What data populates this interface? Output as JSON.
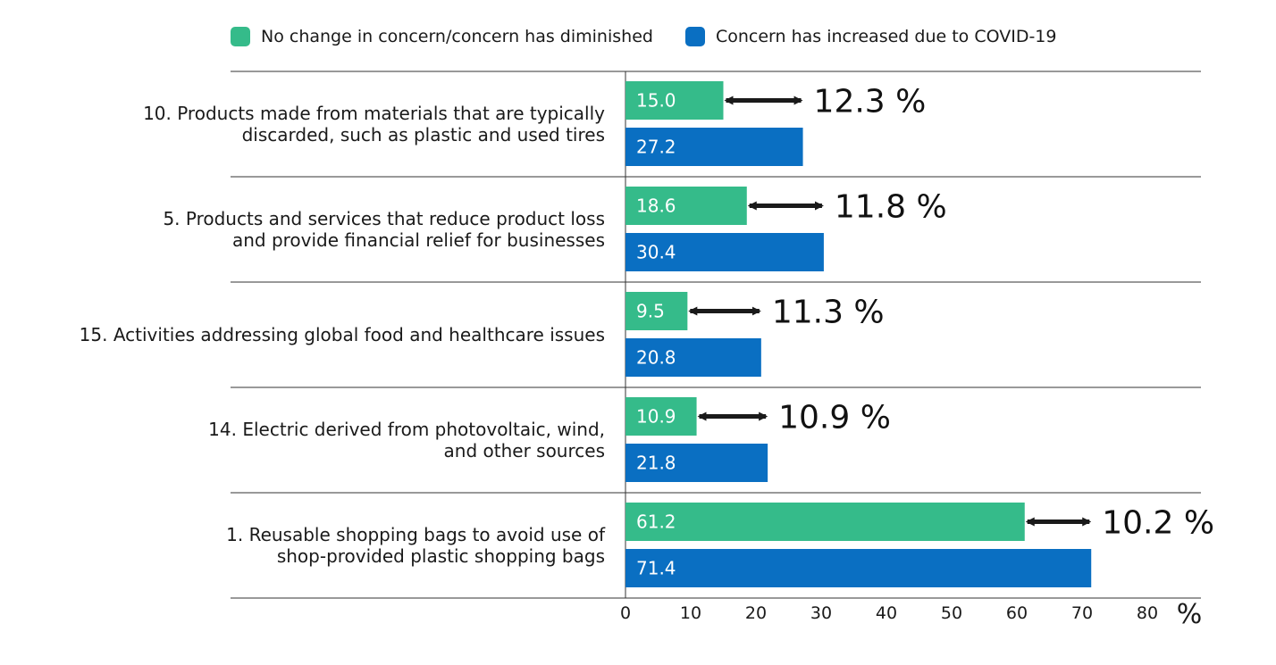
{
  "legend": {
    "items": [
      {
        "label": "No change in concern/concern has diminished",
        "color": "#35bb8a"
      },
      {
        "label": "Concern has increased due to COVID-19",
        "color": "#0a6fc2"
      }
    ]
  },
  "chart_data": {
    "type": "bar",
    "orientation": "horizontal",
    "categories": [
      [
        "10. Products made from materials that are typically",
        "discarded, such as plastic and used tires"
      ],
      [
        "5. Products and services that reduce product loss",
        "and provide financial relief for businesses"
      ],
      [
        "15. Activities addressing global food and healthcare issues"
      ],
      [
        "14. Electric derived from photovoltaic, wind,",
        "and other sources"
      ],
      [
        "1. Reusable shopping bags to avoid use of",
        "shop-provided plastic shopping bags"
      ]
    ],
    "series": [
      {
        "name": "No change in concern/concern has diminished",
        "color": "#35bb8a",
        "values": [
          15.0,
          18.6,
          9.5,
          10.9,
          61.2
        ],
        "labels": [
          "15.0",
          "18.6",
          "9.5",
          "10.9",
          "61.2"
        ]
      },
      {
        "name": "Concern has increased due to COVID-19",
        "color": "#0a6fc2",
        "values": [
          27.2,
          30.4,
          20.8,
          21.8,
          71.4
        ],
        "labels": [
          "27.2",
          "30.4",
          "20.8",
          "21.8",
          "71.4"
        ]
      }
    ],
    "annotations": [
      "12.3 %",
      "11.8 %",
      "11.3 %",
      "10.9 %",
      "10.2 %"
    ],
    "xticks": [
      0,
      10,
      20,
      30,
      40,
      50,
      60,
      70,
      80
    ],
    "xlim": [
      0,
      88
    ],
    "xunit": "%",
    "grid": false
  }
}
